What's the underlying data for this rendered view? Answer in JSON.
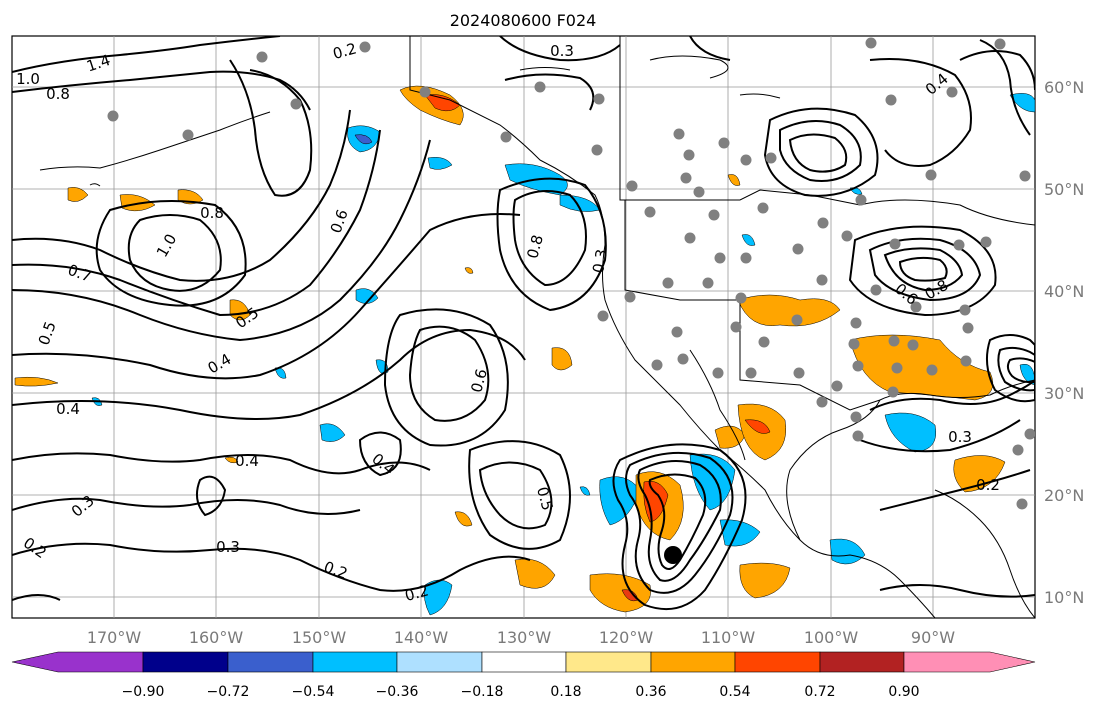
{
  "map": {
    "title": "2024080600 F024",
    "lon_ticks": [
      "170°W",
      "160°W",
      "150°W",
      "140°W",
      "130°W",
      "120°W",
      "110°W",
      "100°W",
      "90°W"
    ],
    "lat_ticks": [
      "60°N",
      "50°N",
      "40°N",
      "30°N",
      "20°N",
      "10°N"
    ],
    "contour_labels": [
      "1.4",
      "1.0",
      "0.8",
      "0.2",
      "0.3",
      "0.4",
      "0.6",
      "0.8",
      "1.0",
      "0.7",
      "0.5",
      "0.4",
      "0.5",
      "0.6",
      "0.8",
      "0.3",
      "0.4",
      "0.2",
      "0.3",
      "0.2",
      "0.4",
      "0.5",
      "0.3",
      "0.2",
      "0.8",
      "0.6",
      "0.3",
      "0.2",
      "0.4"
    ],
    "colors": {
      "land_outline": "#000000",
      "grid": "#999999",
      "station_dot": "#808080",
      "orange": "#ffa500",
      "red_orange": "#ff4500",
      "red": "#e83a12",
      "deep_sky_blue": "#00bfff",
      "light_blue": "#a8dcff"
    }
  },
  "colorbar": {
    "colors": [
      "#9932cc",
      "#00008b",
      "#3a5fcd",
      "#00bfff",
      "#aee0ff",
      "#ffffff",
      "#ffe88a",
      "#ffa500",
      "#ff4500",
      "#b22222",
      "#ff8fb5"
    ],
    "labels": [
      "−0.90",
      "−0.72",
      "−0.54",
      "−0.36",
      "−0.18",
      "0.18",
      "0.36",
      "0.54",
      "0.72",
      "0.90"
    ]
  }
}
